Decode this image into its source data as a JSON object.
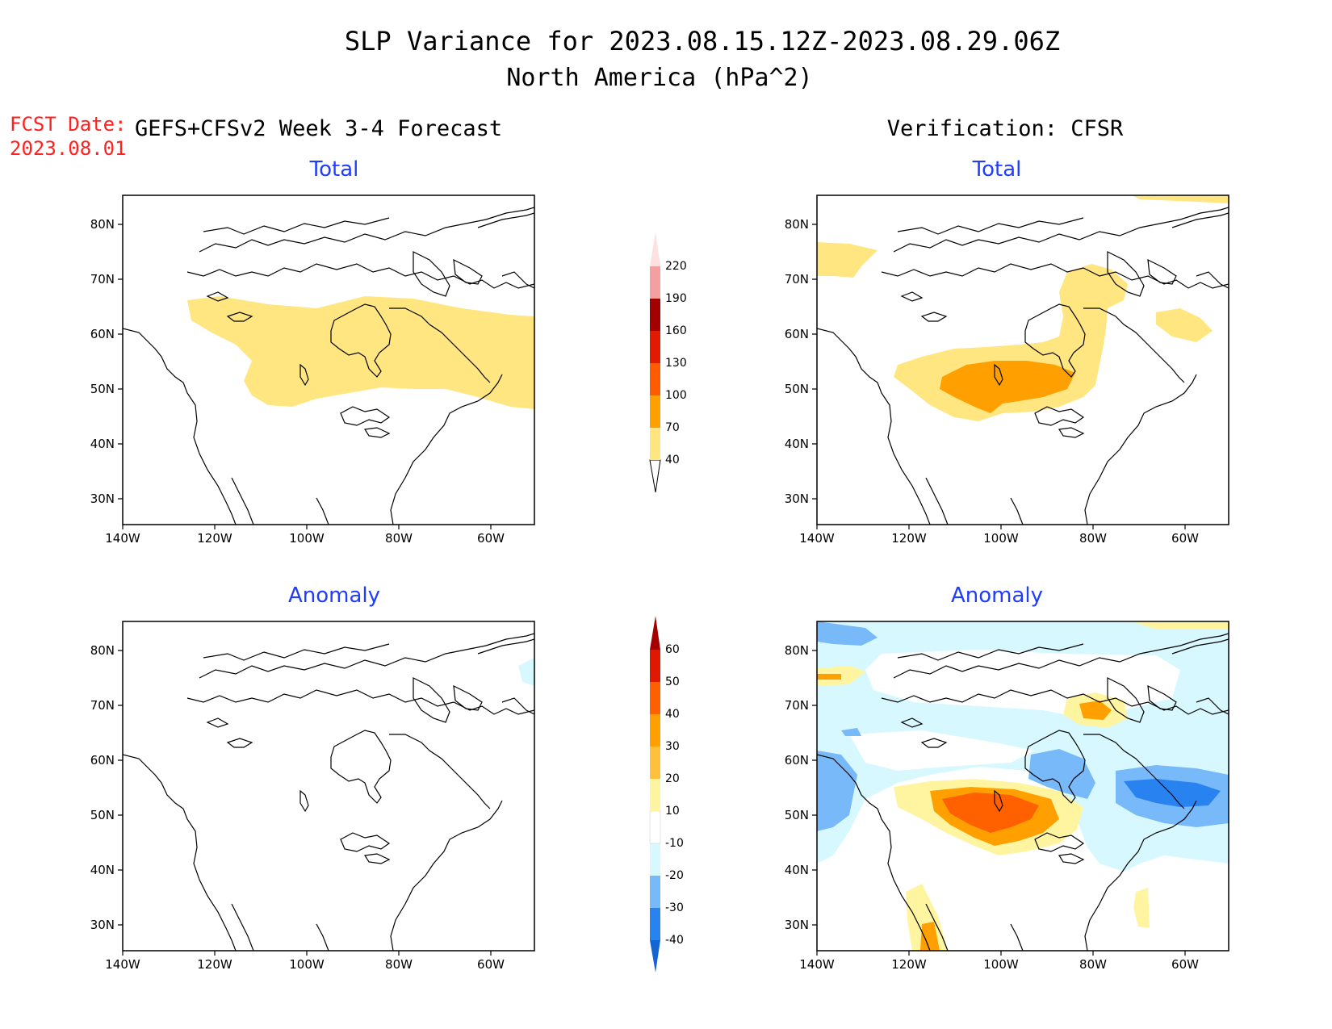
{
  "title_line1": "SLP Variance for 2023.08.15.12Z-2023.08.29.06Z",
  "title_line2": "North America (hPa^2)",
  "fcst_label": "FCST Date:",
  "fcst_date": "2023.08.01",
  "left_header": "GEFS+CFSv2 Week 3-4 Forecast",
  "right_header": "Verification: CFSR",
  "panel_titles": {
    "forecast_total": "Total",
    "verification_total": "Total",
    "forecast_anomaly": "Anomaly",
    "verification_anomaly": "Anomaly"
  },
  "lat_labels": [
    "80N",
    "70N",
    "60N",
    "50N",
    "40N",
    "30N"
  ],
  "lon_labels": [
    "140W",
    "120W",
    "100W",
    "80W",
    "60W"
  ],
  "total_colorbar": {
    "labels": [
      "40",
      "70",
      "100",
      "130",
      "160",
      "190",
      "220"
    ],
    "colors": [
      "#ffe680",
      "#ffa000",
      "#ff5c00",
      "#e21a00",
      "#a30000",
      "#f4a0a0",
      "#fde0e0"
    ]
  },
  "anomaly_colorbar": {
    "labels": [
      "-40",
      "-30",
      "-20",
      "-10",
      "10",
      "20",
      "30",
      "40",
      "50",
      "60"
    ],
    "colors": [
      "#1464d2",
      "#2882f0",
      "#78b9fa",
      "#d7f8ff",
      "#ffffff",
      "#fff5a0",
      "#ffc13c",
      "#ffa000",
      "#ff6000",
      "#e01800",
      "#a50000"
    ]
  },
  "map_legend_colors": {
    "yellow": "#ffe680",
    "orange": "#ffa000",
    "dark_orange": "#ff6000",
    "red": "#e01800",
    "light_cyan": "#d7f8ff",
    "light_blue": "#78b9fa",
    "blue": "#2882f0",
    "dark_blue": "#1464d2",
    "pale_yellow": "#fff5a0"
  }
}
